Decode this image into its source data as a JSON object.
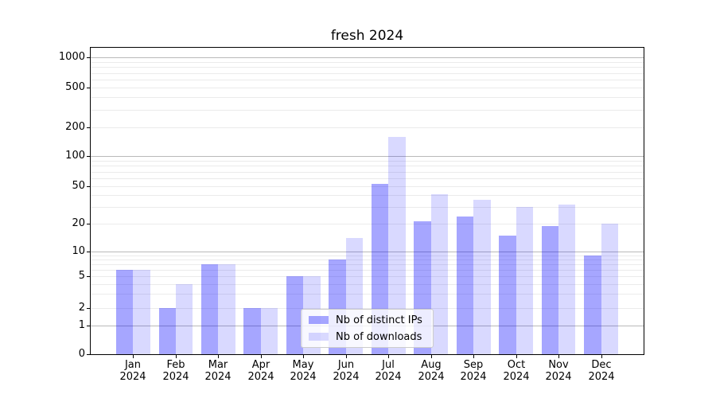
{
  "title": "fresh 2024",
  "chart_data": {
    "type": "bar",
    "title": "fresh 2024",
    "categories": [
      "Jan 2024",
      "Feb 2024",
      "Mar 2024",
      "Apr 2024",
      "May 2024",
      "Jun 2024",
      "Jul 2024",
      "Aug 2024",
      "Sep 2024",
      "Oct 2024",
      "Nov 2024",
      "Dec 2024"
    ],
    "x_months": [
      "Jan",
      "Feb",
      "Mar",
      "Apr",
      "May",
      "Jun",
      "Jul",
      "Aug",
      "Sep",
      "Oct",
      "Nov",
      "Dec"
    ],
    "x_year": "2024",
    "series": [
      {
        "name": "Nb of distinct IPs",
        "color": "rgba(0,0,255,0.35)",
        "values": [
          6,
          2,
          7,
          2,
          5,
          8,
          53,
          21,
          24,
          15,
          19,
          9
        ]
      },
      {
        "name": "Nb of downloads",
        "color": "rgba(0,0,255,0.15)",
        "values": [
          6,
          4,
          7,
          2,
          5,
          14,
          160,
          41,
          36,
          30,
          32,
          20
        ]
      }
    ],
    "y_axis": {
      "scale": "symlog",
      "tick_values": [
        0,
        1,
        2,
        5,
        10,
        20,
        50,
        100,
        200,
        500,
        1000
      ],
      "tick_labels": [
        "0",
        "1",
        "2",
        "5",
        "10",
        "20",
        "50",
        "100",
        "200",
        "500",
        "1000"
      ],
      "major_gridlines": [
        1,
        10,
        100,
        1000
      ],
      "minor_gridlines": [
        2,
        3,
        4,
        5,
        6,
        7,
        8,
        9,
        20,
        30,
        40,
        50,
        60,
        70,
        80,
        90,
        200,
        300,
        400,
        500,
        600,
        700,
        800,
        900
      ],
      "ylim": [
        0,
        1280
      ]
    },
    "legend": {
      "entries": [
        "Nb of distinct IPs",
        "Nb of downloads"
      ],
      "position": "lower center"
    },
    "grid": "on"
  },
  "colors": {
    "bar_distinct_ips": "rgba(0,0,255,0.35)",
    "bar_downloads": "rgba(0,0,255,0.15)",
    "grid_major": "#b9b9b9",
    "grid_minor": "#ebebeb",
    "spine": "#000000",
    "legend_border": "#cccccc"
  }
}
